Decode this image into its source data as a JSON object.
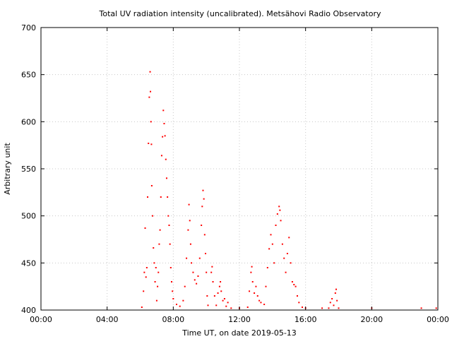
{
  "chart_data": {
    "type": "scatter",
    "title": "Total UV radiation intensity (uncalibrated). Metsähovi Radio Observatory",
    "xlabel": "Time UT, on date 2019-05-13",
    "ylabel": "Arbitrary unit",
    "xlim": [
      0,
      24
    ],
    "ylim": [
      400,
      700
    ],
    "xticks": [
      0,
      4,
      8,
      12,
      16,
      20,
      24
    ],
    "xtick_labels": [
      "00:00",
      "04:00",
      "08:00",
      "12:00",
      "16:00",
      "20:00",
      "00:00"
    ],
    "yticks": [
      400,
      450,
      500,
      550,
      600,
      650,
      700
    ],
    "ytick_labels": [
      "400",
      "450",
      "500",
      "550",
      "600",
      "650",
      "700"
    ],
    "grid": true,
    "legend": "none",
    "color": "#ff0000",
    "series": [
      {
        "values": [
          [
            6.1,
            403
          ],
          [
            6.2,
            420
          ],
          [
            6.25,
            440
          ],
          [
            6.3,
            487
          ],
          [
            6.35,
            435
          ],
          [
            6.4,
            445
          ],
          [
            6.45,
            520
          ],
          [
            6.5,
            577
          ],
          [
            6.55,
            626
          ],
          [
            6.6,
            653
          ],
          [
            6.62,
            632
          ],
          [
            6.65,
            600
          ],
          [
            6.68,
            576
          ],
          [
            6.7,
            532
          ],
          [
            6.75,
            500
          ],
          [
            6.8,
            466
          ],
          [
            6.85,
            450
          ],
          [
            6.9,
            430
          ],
          [
            6.95,
            445
          ],
          [
            7.0,
            410
          ],
          [
            7.05,
            425
          ],
          [
            7.1,
            440
          ],
          [
            7.15,
            470
          ],
          [
            7.2,
            485
          ],
          [
            7.25,
            520
          ],
          [
            7.3,
            564
          ],
          [
            7.35,
            584
          ],
          [
            7.4,
            612
          ],
          [
            7.45,
            598
          ],
          [
            7.5,
            585
          ],
          [
            7.55,
            560
          ],
          [
            7.6,
            540
          ],
          [
            7.65,
            520
          ],
          [
            7.7,
            500
          ],
          [
            7.75,
            490
          ],
          [
            7.8,
            470
          ],
          [
            7.85,
            445
          ],
          [
            7.9,
            430
          ],
          [
            7.95,
            420
          ],
          [
            8.0,
            412
          ],
          [
            8.2,
            406
          ],
          [
            8.4,
            404
          ],
          [
            8.6,
            410
          ],
          [
            8.7,
            425
          ],
          [
            8.8,
            455
          ],
          [
            8.9,
            485
          ],
          [
            8.95,
            512
          ],
          [
            9.0,
            495
          ],
          [
            9.05,
            470
          ],
          [
            9.1,
            450
          ],
          [
            9.2,
            440
          ],
          [
            9.3,
            432
          ],
          [
            9.4,
            428
          ],
          [
            9.5,
            436
          ],
          [
            9.6,
            455
          ],
          [
            9.7,
            490
          ],
          [
            9.75,
            510
          ],
          [
            9.8,
            527
          ],
          [
            9.85,
            518
          ],
          [
            9.9,
            480
          ],
          [
            9.95,
            460
          ],
          [
            10.0,
            440
          ],
          [
            10.05,
            415
          ],
          [
            10.1,
            405
          ],
          [
            10.3,
            440
          ],
          [
            10.35,
            446
          ],
          [
            10.4,
            430
          ],
          [
            10.5,
            415
          ],
          [
            10.6,
            405
          ],
          [
            10.7,
            418
          ],
          [
            10.8,
            425
          ],
          [
            10.85,
            430
          ],
          [
            10.9,
            420
          ],
          [
            11.0,
            410
          ],
          [
            11.1,
            412
          ],
          [
            11.2,
            404
          ],
          [
            11.3,
            408
          ],
          [
            11.5,
            402
          ],
          [
            12.0,
            402
          ],
          [
            12.5,
            403
          ],
          [
            12.6,
            420
          ],
          [
            12.7,
            440
          ],
          [
            12.75,
            446
          ],
          [
            12.8,
            430
          ],
          [
            12.9,
            418
          ],
          [
            13.0,
            425
          ],
          [
            13.1,
            415
          ],
          [
            13.2,
            410
          ],
          [
            13.3,
            408
          ],
          [
            13.5,
            406
          ],
          [
            13.6,
            425
          ],
          [
            13.7,
            445
          ],
          [
            13.8,
            465
          ],
          [
            13.9,
            480
          ],
          [
            14.0,
            470
          ],
          [
            14.1,
            450
          ],
          [
            14.2,
            490
          ],
          [
            14.3,
            502
          ],
          [
            14.4,
            510
          ],
          [
            14.45,
            506
          ],
          [
            14.5,
            495
          ],
          [
            14.6,
            470
          ],
          [
            14.7,
            455
          ],
          [
            14.8,
            440
          ],
          [
            14.9,
            460
          ],
          [
            15.0,
            477
          ],
          [
            15.1,
            450
          ],
          [
            15.2,
            430
          ],
          [
            15.3,
            427
          ],
          [
            15.4,
            425
          ],
          [
            15.5,
            415
          ],
          [
            15.6,
            408
          ],
          [
            15.8,
            403
          ],
          [
            16.0,
            402
          ],
          [
            17.0,
            402
          ],
          [
            17.4,
            402
          ],
          [
            17.5,
            408
          ],
          [
            17.6,
            412
          ],
          [
            17.7,
            405
          ],
          [
            17.8,
            418
          ],
          [
            17.85,
            422
          ],
          [
            17.9,
            410
          ],
          [
            18.0,
            402
          ],
          [
            20.0,
            402
          ],
          [
            23.0,
            402
          ],
          [
            23.9,
            402
          ]
        ]
      }
    ]
  }
}
